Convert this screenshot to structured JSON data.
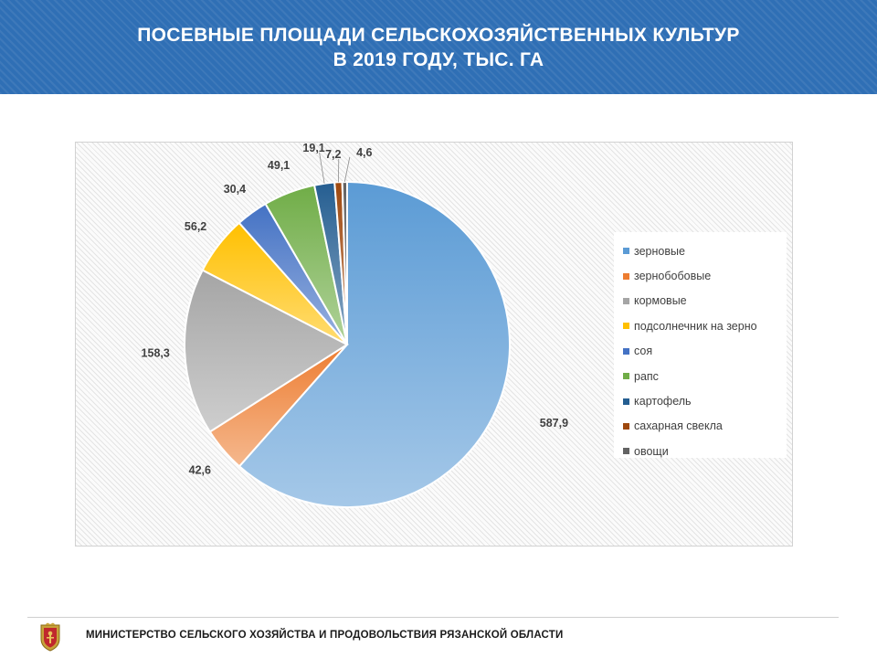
{
  "header": {
    "title_line1": "ПОСЕВНЫЕ ПЛОЩАДИ СЕЛЬСКОХОЗЯЙСТВЕННЫХ КУЛЬТУР",
    "title_line2": "В 2019 ГОДУ, ТЫС. ГА"
  },
  "chart_data": {
    "type": "pie",
    "title": "ПОСЕВНЫЕ ПЛОЩАДИ СЕЛЬСКОХОЗЯЙСТВЕННЫХ КУЛЬТУР В 2019 ГОДУ, ТЫС. ГА",
    "legend_position": "right",
    "categories": [
      "зерновые",
      "зернобобовые",
      "кормовые",
      "подсолнечник на зерно",
      "соя",
      "рапс",
      "картофель",
      "сахарная свекла",
      "овощи"
    ],
    "values": [
      587.9,
      42.6,
      158.3,
      56.2,
      30.4,
      49.1,
      19.1,
      7.2,
      4.6
    ],
    "value_labels": [
      "587,9",
      "42,6",
      "158,3",
      "56,2",
      "30,4",
      "49,1",
      "19,1",
      "7,2",
      "4,6"
    ],
    "colors": [
      "#5b9bd5",
      "#ed7d31",
      "#a5a5a5",
      "#ffc000",
      "#4472c4",
      "#70ad47",
      "#255e91",
      "#9e480e",
      "#636363"
    ]
  },
  "footer": {
    "organization": "МИНИСТЕРСТВО СЕЛЬСКОГО ХОЗЯЙСТВА И ПРОДОВОЛЬСТВИЯ РЯЗАНСКОЙ ОБЛАСТИ",
    "logo_icon": "ryazan-coat-of-arms-icon"
  }
}
